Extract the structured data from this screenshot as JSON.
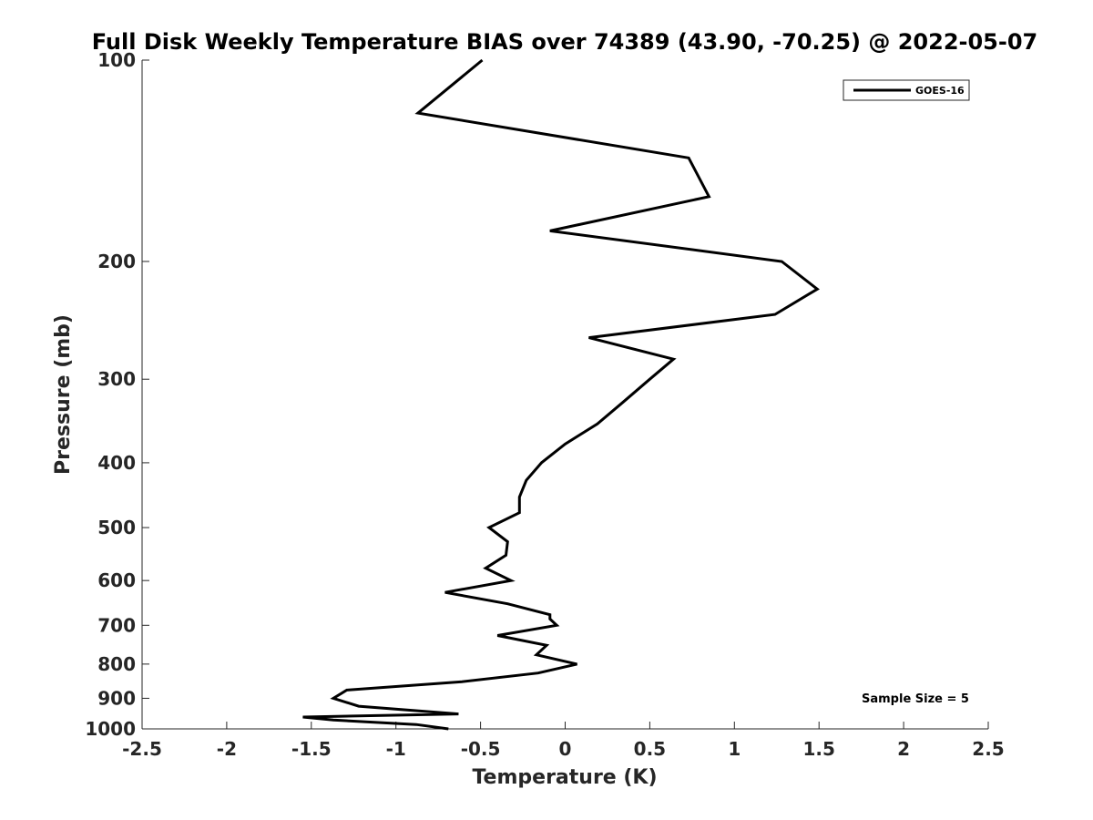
{
  "chart_data": {
    "type": "line",
    "title": "Full Disk Weekly Temperature BIAS over 74389 (43.90, -70.25) @ 2022-05-07",
    "xlabel": "Temperature (K)",
    "ylabel": "Pressure (mb)",
    "xlim": [
      -2.5,
      2.5
    ],
    "ylim": [
      100,
      1000
    ],
    "y_scale": "log",
    "y_reversed": true,
    "grid": false,
    "legend_position": "top-right",
    "x_ticks": [
      -2.5,
      -2,
      -1.5,
      -1,
      -0.5,
      0,
      0.5,
      1,
      1.5,
      2,
      2.5
    ],
    "x_tick_labels": [
      "-2.5",
      "-2",
      "-1.5",
      "-1",
      "-0.5",
      "0",
      "0.5",
      "1",
      "1.5",
      "2",
      "2.5"
    ],
    "y_ticks": [
      100,
      200,
      300,
      400,
      500,
      600,
      700,
      800,
      900,
      1000
    ],
    "y_tick_labels": [
      "100",
      "200",
      "300",
      "400",
      "500",
      "600",
      "700",
      "800",
      "900",
      "1000"
    ],
    "series": [
      {
        "name": "GOES-16",
        "color": "#000000",
        "points": [
          {
            "x": -0.49,
            "y": 100
          },
          {
            "x": -0.87,
            "y": 120
          },
          {
            "x": 0.73,
            "y": 140
          },
          {
            "x": 0.85,
            "y": 160
          },
          {
            "x": -0.09,
            "y": 180
          },
          {
            "x": 1.28,
            "y": 200
          },
          {
            "x": 1.49,
            "y": 220
          },
          {
            "x": 1.24,
            "y": 240
          },
          {
            "x": 0.14,
            "y": 260
          },
          {
            "x": 0.64,
            "y": 280
          },
          {
            "x": 0.5,
            "y": 300
          },
          {
            "x": 0.34,
            "y": 325
          },
          {
            "x": 0.19,
            "y": 350
          },
          {
            "x": 0.0,
            "y": 375
          },
          {
            "x": -0.14,
            "y": 400
          },
          {
            "x": -0.23,
            "y": 425
          },
          {
            "x": -0.27,
            "y": 450
          },
          {
            "x": -0.27,
            "y": 475
          },
          {
            "x": -0.45,
            "y": 500
          },
          {
            "x": -0.34,
            "y": 525
          },
          {
            "x": -0.35,
            "y": 550
          },
          {
            "x": -0.47,
            "y": 575
          },
          {
            "x": -0.32,
            "y": 600
          },
          {
            "x": -0.71,
            "y": 625
          },
          {
            "x": -0.34,
            "y": 650
          },
          {
            "x": -0.09,
            "y": 675
          },
          {
            "x": -0.09,
            "y": 685
          },
          {
            "x": -0.05,
            "y": 700
          },
          {
            "x": -0.4,
            "y": 725
          },
          {
            "x": -0.11,
            "y": 750
          },
          {
            "x": -0.17,
            "y": 775
          },
          {
            "x": 0.07,
            "y": 800
          },
          {
            "x": -0.16,
            "y": 825
          },
          {
            "x": -0.61,
            "y": 850
          },
          {
            "x": -1.29,
            "y": 875
          },
          {
            "x": -1.37,
            "y": 900
          },
          {
            "x": -1.22,
            "y": 925
          },
          {
            "x": -0.63,
            "y": 950
          },
          {
            "x": -1.55,
            "y": 960
          },
          {
            "x": -1.37,
            "y": 970
          },
          {
            "x": -0.88,
            "y": 985
          },
          {
            "x": -0.69,
            "y": 1000
          }
        ]
      }
    ],
    "annotations": [
      "Sample Size = 5"
    ]
  }
}
